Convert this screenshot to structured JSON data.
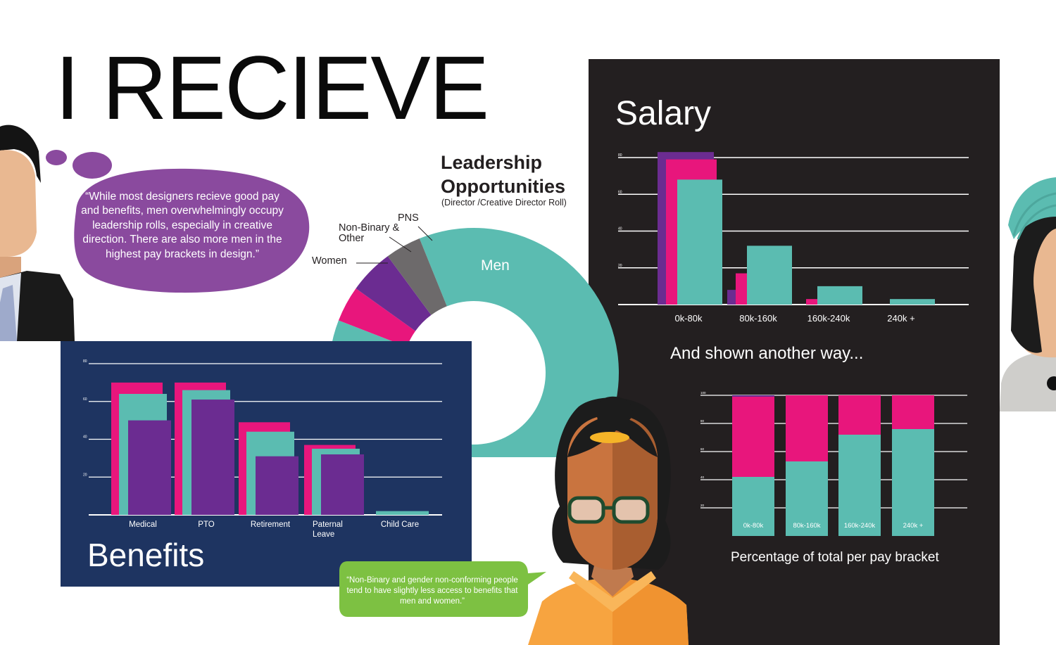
{
  "page": {
    "title": "I RECIEVE",
    "colors": {
      "men": "#5bbcb1",
      "women": "#e8167c",
      "nonbinary": "#6b2c91",
      "pns": "#6d6a6b",
      "dark_panel": "#231f20",
      "navy_panel": "#1e3461",
      "bubble_purple": "#8a4a9e",
      "bubble_green": "#7dc142"
    }
  },
  "quotes": {
    "leadership": "“While most designers recieve good pay and benefits, men overwhelmingly occupy leadership rolls, especially in creative direction. There are also more men in the highest pay brackets in design.”",
    "benefits": "“Non-Binary and gender non-conforming people tend to have slightly less access to benefits that men and women.”"
  },
  "leadership": {
    "title": "Leadership Opportunities",
    "subtitle": "(Director /Creative Director Roll)",
    "labels": {
      "men": "Men",
      "women": "Women",
      "nonbinary": "Non-Binary & Other",
      "pns": "PNS"
    }
  },
  "salary": {
    "title": "Salary",
    "another_way": "And shown another way...",
    "percent_caption": "Percentage of total per pay bracket"
  },
  "benefits": {
    "title": "Benefits"
  },
  "chart_data": [
    {
      "id": "leadership",
      "type": "pie",
      "title": "Leadership Opportunities",
      "subtitle": "(Director /Creative Director Roll)",
      "slices": [
        {
          "label": "Men",
          "value": 87,
          "color": "#5bbcb1"
        },
        {
          "label": "Women",
          "value": 4,
          "color": "#e8167c"
        },
        {
          "label": "Non-Binary & Other",
          "value": 5,
          "color": "#6b2c91"
        },
        {
          "label": "PNS",
          "value": 4,
          "color": "#6d6a6b"
        }
      ]
    },
    {
      "id": "salary",
      "type": "bar",
      "title": "Salary",
      "categories": [
        "0k-80k",
        "80k-160k",
        "160k-240k",
        "240k +"
      ],
      "series": [
        {
          "name": "Non-Binary & Other",
          "color": "#6b2c91",
          "values": [
            83,
            8,
            0,
            0
          ]
        },
        {
          "name": "Women",
          "color": "#e8167c",
          "values": [
            79,
            17,
            3,
            0
          ]
        },
        {
          "name": "Men",
          "color": "#5bbcb1",
          "values": [
            68,
            32,
            10,
            3
          ]
        }
      ],
      "yticks": [
        20,
        40,
        60,
        80
      ],
      "ylim": [
        0,
        90
      ]
    },
    {
      "id": "salary_percent",
      "type": "bar",
      "stacked": true,
      "title": "",
      "caption": "Percentage of total per pay bracket",
      "categories": [
        "0k-80k",
        "80k-160k",
        "160k-240k",
        "240k +"
      ],
      "series": [
        {
          "name": "Men",
          "color": "#5bbcb1",
          "values": [
            42,
            53,
            72,
            76
          ]
        },
        {
          "name": "Women",
          "color": "#e8167c",
          "values": [
            57,
            47,
            28,
            24
          ]
        },
        {
          "name": "Non-Binary & Other",
          "color": "#6b2c91",
          "values": [
            1,
            0,
            0,
            0
          ]
        }
      ],
      "yticks": [
        20,
        40,
        60,
        80,
        100
      ],
      "ylim": [
        0,
        100
      ]
    },
    {
      "id": "benefits",
      "type": "bar",
      "title": "Benefits",
      "categories": [
        "Medical",
        "PTO",
        "Retirement",
        "Paternal Leave",
        "Child Care"
      ],
      "series": [
        {
          "name": "Women",
          "color": "#e8167c",
          "values": [
            70,
            70,
            49,
            37,
            0
          ]
        },
        {
          "name": "Men",
          "color": "#5bbcb1",
          "values": [
            64,
            66,
            44,
            35,
            2
          ]
        },
        {
          "name": "Non-Binary & Other",
          "color": "#6b2c91",
          "values": [
            50,
            61,
            31,
            32,
            0
          ]
        }
      ],
      "yticks": [
        20,
        40,
        60,
        80
      ],
      "ylim": [
        0,
        85
      ]
    }
  ]
}
